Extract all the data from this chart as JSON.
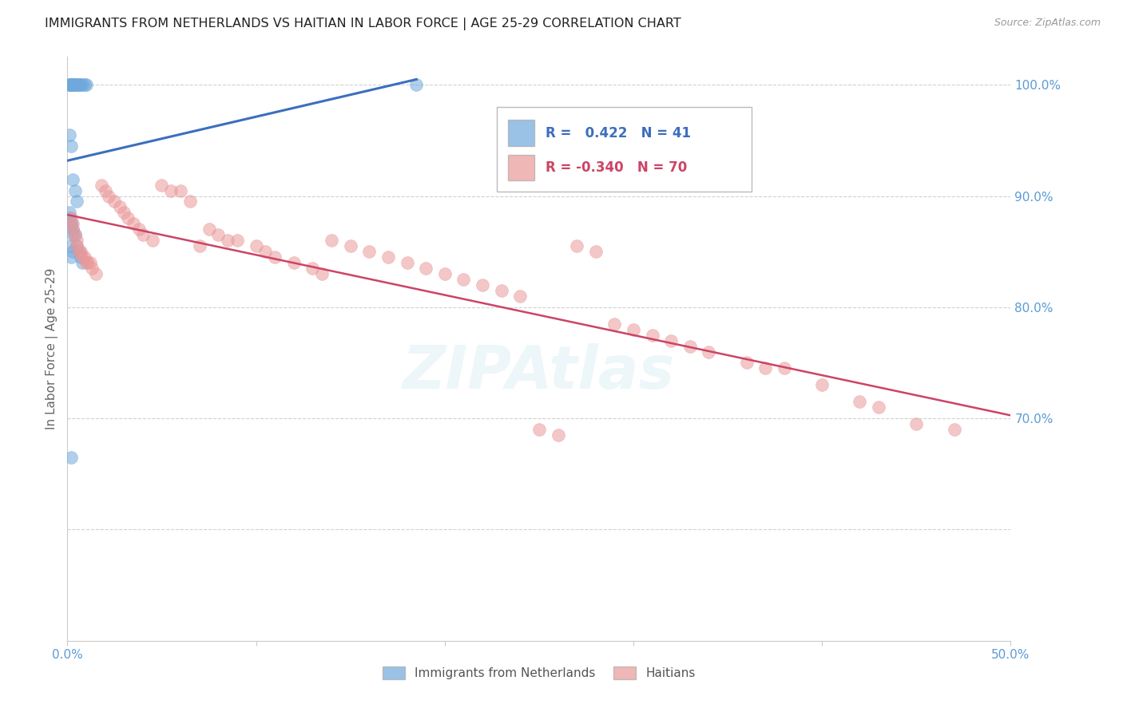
{
  "title": "IMMIGRANTS FROM NETHERLANDS VS HAITIAN IN LABOR FORCE | AGE 25-29 CORRELATION CHART",
  "source_text": "Source: ZipAtlas.com",
  "ylabel": "In Labor Force | Age 25-29",
  "legend_r_blue": "0.422",
  "legend_n_blue": "41",
  "legend_r_pink": "-0.340",
  "legend_n_pink": "70",
  "blue_color": "#6fa8dc",
  "pink_color": "#ea9999",
  "blue_line_color": "#3d6ebf",
  "pink_line_color": "#cc4466",
  "title_color": "#222222",
  "tick_color": "#5b9bd5",
  "watermark_text": "ZIPAtlas",
  "xlim": [
    0.0,
    0.5
  ],
  "ylim": [
    0.5,
    1.025
  ],
  "yticks": [
    0.5,
    0.6,
    0.7,
    0.8,
    0.9,
    1.0
  ],
  "ytick_labels": [
    "",
    "",
    "70.0%",
    "80.0%",
    "90.0%",
    "100.0%"
  ],
  "xticks": [
    0.0,
    0.1,
    0.2,
    0.3,
    0.4,
    0.5
  ],
  "xtick_labels": [
    "0.0%",
    "",
    "",
    "",
    "",
    "50.0%"
  ],
  "grid_color": "#cccccc",
  "background_color": "#ffffff",
  "blue_x": [
    0.001,
    0.001,
    0.001,
    0.002,
    0.002,
    0.002,
    0.003,
    0.003,
    0.003,
    0.003,
    0.004,
    0.004,
    0.005,
    0.005,
    0.006,
    0.006,
    0.007,
    0.008,
    0.009,
    0.01,
    0.001,
    0.002,
    0.003,
    0.004,
    0.005,
    0.001,
    0.002,
    0.003,
    0.004,
    0.005,
    0.006,
    0.007,
    0.008,
    0.001,
    0.002,
    0.003,
    0.002,
    0.003,
    0.002,
    0.185,
    0.002
  ],
  "blue_y": [
    1.0,
    1.0,
    1.0,
    1.0,
    1.0,
    1.0,
    1.0,
    1.0,
    1.0,
    1.0,
    1.0,
    1.0,
    1.0,
    1.0,
    1.0,
    1.0,
    1.0,
    1.0,
    1.0,
    1.0,
    0.955,
    0.945,
    0.915,
    0.905,
    0.895,
    0.885,
    0.875,
    0.87,
    0.865,
    0.855,
    0.85,
    0.845,
    0.84,
    0.88,
    0.875,
    0.865,
    0.855,
    0.85,
    0.845,
    1.0,
    0.665
  ],
  "pink_x": [
    0.002,
    0.003,
    0.003,
    0.004,
    0.005,
    0.005,
    0.006,
    0.007,
    0.008,
    0.009,
    0.01,
    0.011,
    0.012,
    0.013,
    0.015,
    0.018,
    0.02,
    0.022,
    0.025,
    0.028,
    0.03,
    0.032,
    0.035,
    0.038,
    0.04,
    0.045,
    0.05,
    0.055,
    0.06,
    0.065,
    0.07,
    0.075,
    0.08,
    0.085,
    0.09,
    0.1,
    0.105,
    0.11,
    0.12,
    0.13,
    0.135,
    0.14,
    0.15,
    0.16,
    0.17,
    0.18,
    0.19,
    0.2,
    0.21,
    0.22,
    0.23,
    0.24,
    0.25,
    0.26,
    0.27,
    0.28,
    0.29,
    0.3,
    0.31,
    0.32,
    0.33,
    0.34,
    0.36,
    0.37,
    0.38,
    0.4,
    0.42,
    0.43,
    0.45,
    0.47
  ],
  "pink_y": [
    0.88,
    0.875,
    0.87,
    0.865,
    0.86,
    0.855,
    0.85,
    0.85,
    0.845,
    0.845,
    0.84,
    0.84,
    0.84,
    0.835,
    0.83,
    0.91,
    0.905,
    0.9,
    0.895,
    0.89,
    0.885,
    0.88,
    0.875,
    0.87,
    0.865,
    0.86,
    0.91,
    0.905,
    0.905,
    0.895,
    0.855,
    0.87,
    0.865,
    0.86,
    0.86,
    0.855,
    0.85,
    0.845,
    0.84,
    0.835,
    0.83,
    0.86,
    0.855,
    0.85,
    0.845,
    0.84,
    0.835,
    0.83,
    0.825,
    0.82,
    0.815,
    0.81,
    0.69,
    0.685,
    0.855,
    0.85,
    0.785,
    0.78,
    0.775,
    0.77,
    0.765,
    0.76,
    0.75,
    0.745,
    0.745,
    0.73,
    0.715,
    0.71,
    0.695,
    0.69
  ]
}
